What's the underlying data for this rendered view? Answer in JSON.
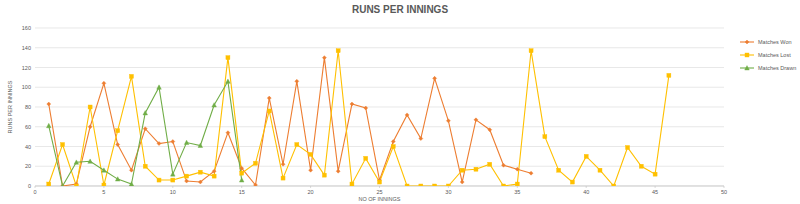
{
  "chart_data": {
    "type": "line",
    "title": "RUNS PER INNINGS",
    "x_label": "NO OF INNINGS",
    "y_label": "RUNS PER INNINGS",
    "x": [
      1,
      2,
      3,
      4,
      5,
      6,
      7,
      8,
      9,
      10,
      11,
      12,
      13,
      14,
      15,
      16,
      17,
      18,
      19,
      20,
      21,
      22,
      23,
      24,
      25,
      26,
      27,
      28,
      29,
      30,
      31,
      32,
      33,
      34,
      35,
      36,
      37,
      38,
      39,
      40,
      41,
      42,
      43,
      44,
      45,
      46
    ],
    "series": [
      {
        "name": "Matches Won",
        "color": "#ed7d31",
        "marker": "diamond",
        "values": [
          83,
          0,
          2,
          60,
          104,
          42,
          16,
          58,
          43,
          45,
          5,
          4,
          15,
          54,
          18,
          1,
          89,
          22,
          106,
          16,
          130,
          15,
          83,
          79,
          6,
          45,
          72,
          48,
          109,
          66,
          4,
          67,
          57,
          21,
          17,
          13,
          null,
          null,
          null,
          null,
          null,
          null,
          null,
          null,
          null,
          null
        ]
      },
      {
        "name": "Matches Lost",
        "color": "#ffc000",
        "marker": "square",
        "values": [
          2,
          42,
          0,
          80,
          1,
          56,
          111,
          20,
          6,
          6,
          10,
          14,
          10,
          130,
          13,
          23,
          76,
          8,
          42,
          32,
          11,
          137,
          2,
          28,
          4,
          40,
          0,
          0,
          0,
          0,
          16,
          17,
          22,
          0,
          2,
          137,
          50,
          16,
          4,
          30,
          16,
          0,
          39,
          20,
          12,
          112
        ]
      },
      {
        "name": "Matches Drawn",
        "color": "#70ad47",
        "marker": "triangle",
        "values": [
          61,
          0,
          24,
          25,
          16,
          7,
          2,
          74,
          100,
          12,
          44,
          41,
          82,
          106,
          6,
          null,
          null,
          null,
          null,
          null,
          null,
          null,
          null,
          null,
          null,
          null,
          null,
          null,
          null,
          null,
          null,
          null,
          null,
          null,
          null,
          null,
          null,
          null,
          null,
          null,
          null,
          null,
          null,
          null,
          null,
          null
        ]
      }
    ],
    "xlim": [
      0,
      50
    ],
    "xticks": [
      0,
      5,
      10,
      15,
      20,
      25,
      30,
      35,
      40,
      45,
      50
    ],
    "ylim": [
      0,
      160
    ],
    "yticks": [
      0,
      20,
      40,
      60,
      80,
      100,
      120,
      140,
      160
    ],
    "grid": true,
    "legend": "right"
  }
}
